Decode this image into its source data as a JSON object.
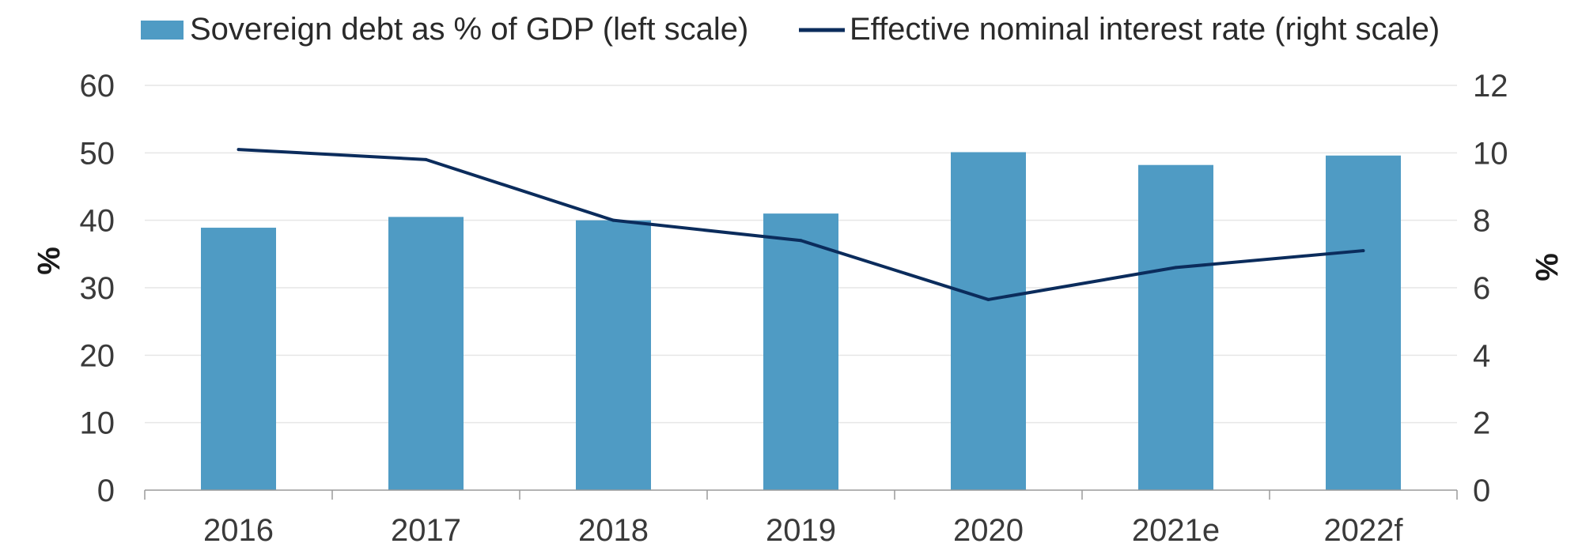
{
  "chart_data": {
    "type": "bar",
    "categories": [
      "2016",
      "2017",
      "2018",
      "2019",
      "2020",
      "2021e",
      "2022f"
    ],
    "series": [
      {
        "name": "Sovereign debt as % of GDP (left scale)",
        "type": "bar",
        "axis": "left",
        "color": "#4f9bc4",
        "values": [
          38.9,
          40.5,
          40.0,
          41.0,
          50.1,
          48.2,
          49.6
        ]
      },
      {
        "name": "Effective nominal interest rate (right scale)",
        "type": "line",
        "axis": "right",
        "color": "#0b2c5c",
        "values": [
          10.1,
          9.8,
          8.0,
          7.4,
          5.65,
          6.6,
          7.1
        ]
      }
    ],
    "ylabel_left": "%",
    "ylabel_right": "%",
    "ylim_left": [
      0,
      60
    ],
    "ylim_right": [
      0,
      12
    ],
    "yticks_left": [
      "0",
      "10",
      "20",
      "30",
      "40",
      "50",
      "60"
    ],
    "yticks_right": [
      "0",
      "2",
      "4",
      "6",
      "8",
      "10",
      "12"
    ],
    "grid": true,
    "legend_position": "top"
  }
}
